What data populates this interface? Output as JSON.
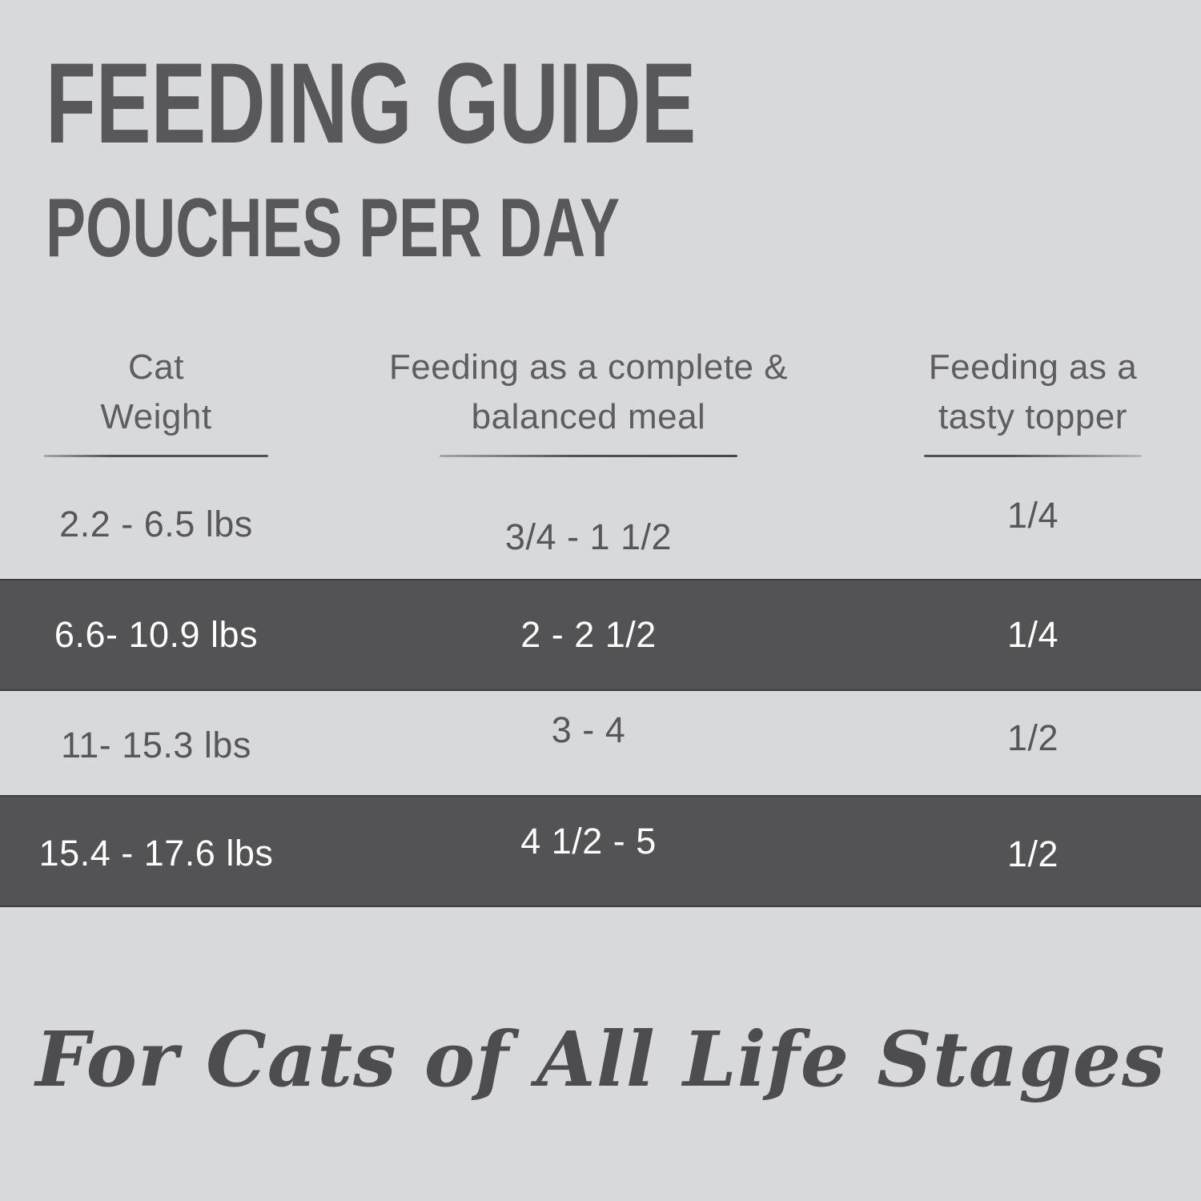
{
  "header": {
    "title": "FEEDING GUIDE",
    "subtitle": "POUCHES PER DAY"
  },
  "table": {
    "columns": [
      {
        "line1": "Cat",
        "line2": "Weight"
      },
      {
        "line1": "Feeding as a complete &",
        "line2": "balanced meal"
      },
      {
        "line1": "Feeding as a",
        "line2": "tasty topper"
      }
    ],
    "rows": [
      {
        "weight": "2.2 - 6.5 lbs",
        "meal": "3/4 - 1 1/2",
        "topper": "1/4",
        "highlighted": false
      },
      {
        "weight": "6.6- 10.9 lbs",
        "meal": "2 - 2 1/2",
        "topper": "1/4",
        "highlighted": true
      },
      {
        "weight": "11- 15.3 lbs",
        "meal": "3 - 4",
        "topper": "1/2",
        "highlighted": false
      },
      {
        "weight": "15.4 - 17.6 lbs",
        "meal": "4 1/2 - 5",
        "topper": "1/2",
        "highlighted": true
      }
    ]
  },
  "footer": {
    "tagline": "For Cats of All Life Stages"
  },
  "colors": {
    "background": "#d8d9da",
    "highlight_row": "#535355",
    "text_dark": "#58585a",
    "text_on_dark": "#ffffff"
  }
}
